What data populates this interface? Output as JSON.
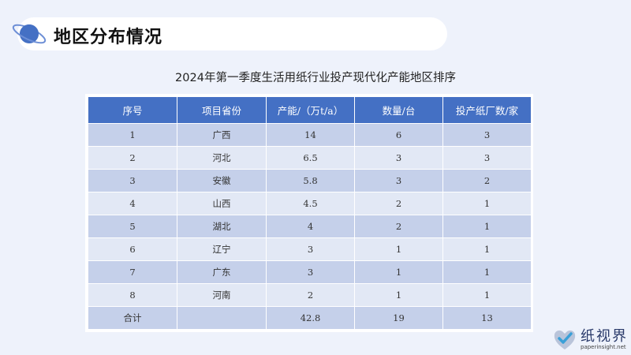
{
  "header": {
    "title": "地区分布情况"
  },
  "table": {
    "title": "2024年第一季度生活用纸行业投产现代化产能地区排序",
    "columns": [
      "序号",
      "项目省份",
      "产能/（万t/a）",
      "数量/台",
      "投产纸厂数/家"
    ],
    "rows": [
      [
        "1",
        "广西",
        "14",
        "6",
        "3"
      ],
      [
        "2",
        "河北",
        "6.5",
        "3",
        "3"
      ],
      [
        "3",
        "安徽",
        "5.8",
        "3",
        "2"
      ],
      [
        "4",
        "山西",
        "4.5",
        "2",
        "1"
      ],
      [
        "5",
        "湖北",
        "4",
        "2",
        "1"
      ],
      [
        "6",
        "辽宁",
        "3",
        "1",
        "1"
      ],
      [
        "7",
        "广东",
        "3",
        "1",
        "1"
      ],
      [
        "8",
        "河南",
        "2",
        "1",
        "1"
      ]
    ],
    "total": [
      "合计",
      "",
      "42.8",
      "19",
      "13"
    ]
  },
  "logo": {
    "name": "纸视界",
    "url": "paperinsight.net",
    "icon": "heart-check-icon"
  },
  "colors": {
    "header_row": "#4470c4",
    "row_odd": "#c5d0ea",
    "row_even": "#e2e8f5",
    "background": "#eef2fb"
  }
}
